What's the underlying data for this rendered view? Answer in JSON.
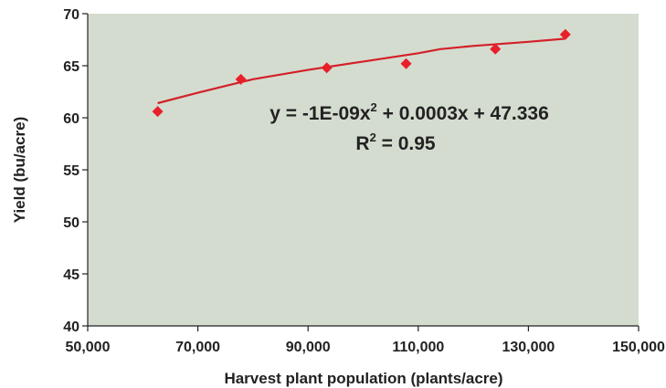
{
  "chart_data": {
    "type": "scatter",
    "xlabel": "Harvest plant population (plants/acre)",
    "ylabel": "Yield (bu/acre)",
    "xlim": [
      50000,
      150000
    ],
    "ylim": [
      40,
      70
    ],
    "x_ticks": [
      "50,000",
      "70,000",
      "90,000",
      "110,000",
      "130,000",
      "150,000"
    ],
    "y_ticks": [
      "40",
      "45",
      "50",
      "55",
      "60",
      "65",
      "70"
    ],
    "x_tick_values": [
      50000,
      70000,
      90000,
      110000,
      130000,
      150000
    ],
    "y_tick_values": [
      40,
      45,
      50,
      55,
      60,
      65,
      70
    ],
    "series": [
      {
        "marker": "diamond",
        "color": "#e8202a",
        "points": [
          {
            "x": 62700,
            "y": 60.6
          },
          {
            "x": 77800,
            "y": 63.7
          },
          {
            "x": 93400,
            "y": 64.8
          },
          {
            "x": 107800,
            "y": 65.2
          },
          {
            "x": 124000,
            "y": 66.6
          },
          {
            "x": 136700,
            "y": 68.0
          }
        ]
      }
    ],
    "trendline": {
      "type": "polynomial",
      "color": "#d42028",
      "points": [
        {
          "x": 62700,
          "y": 61.4
        },
        {
          "x": 70000,
          "y": 62.4
        },
        {
          "x": 80000,
          "y": 63.7
        },
        {
          "x": 90000,
          "y": 64.6
        },
        {
          "x": 100000,
          "y": 65.4
        },
        {
          "x": 110000,
          "y": 66.2
        },
        {
          "x": 114000,
          "y": 66.6
        },
        {
          "x": 120000,
          "y": 66.9
        },
        {
          "x": 130000,
          "y": 67.3
        },
        {
          "x": 136700,
          "y": 67.6
        }
      ],
      "equation_prefix": "y = -1E-09x",
      "equation_exp": "2",
      "equation_suffix": " + 0.0003x + 47.336",
      "r2_prefix": "R",
      "r2_exp": "2",
      "r2_suffix": " = 0.95"
    },
    "grid": false,
    "legend": "none",
    "plot_background": "#d4dcd0"
  }
}
